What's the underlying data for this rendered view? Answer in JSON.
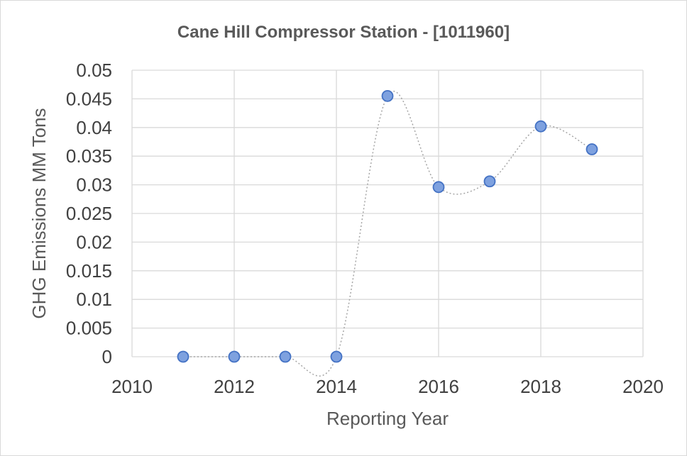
{
  "chart_data": {
    "type": "scatter",
    "title": "Cane Hill Compressor Station - [1011960]",
    "xlabel": "Reporting Year",
    "ylabel": "GHG Emissions MM Tons",
    "xlim": [
      2010,
      2020
    ],
    "ylim": [
      0,
      0.05
    ],
    "x_ticks": [
      "2010",
      "2012",
      "2014",
      "2016",
      "2018",
      "2020"
    ],
    "y_ticks": [
      "0",
      "0.005",
      "0.01",
      "0.015",
      "0.02",
      "0.025",
      "0.03",
      "0.035",
      "0.04",
      "0.045",
      "0.05"
    ],
    "grid": true,
    "line_style": "smoothed dotted gray",
    "marker_color": "#7ea1df",
    "series": [
      {
        "x": [
          2011,
          2012,
          2013,
          2014,
          2015,
          2016,
          2017,
          2018,
          2019
        ],
        "values": [
          0,
          0,
          0,
          0,
          0.0455,
          0.0296,
          0.0306,
          0.0402,
          0.0362
        ]
      }
    ]
  }
}
